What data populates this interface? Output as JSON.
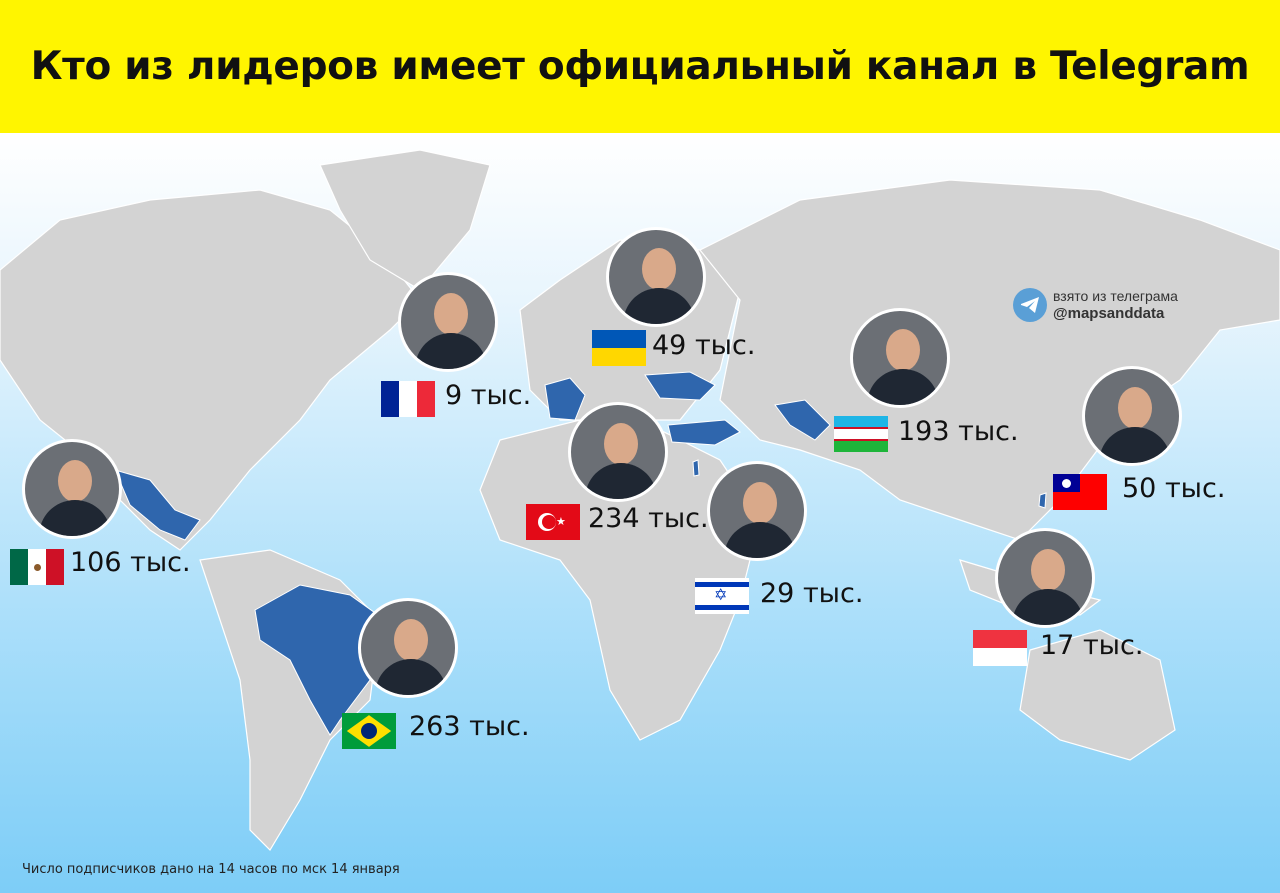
{
  "title": "Кто из лидеров имеет официальный канал в Telegram",
  "colors": {
    "header": "#fff500",
    "land": "#d3d3d3",
    "highlight": "#2f66ad",
    "ocean": "#7dcdf7"
  },
  "watermark": {
    "icon": "telegram-icon",
    "line1": "взято из телеграма",
    "handle": "@mapsanddata"
  },
  "leaders": [
    {
      "id": "france",
      "country": "France",
      "flag": "france-flag",
      "subscribers": "9 тыс."
    },
    {
      "id": "ukraine",
      "country": "Ukraine",
      "flag": "ukraine-flag",
      "subscribers": "49 тыс."
    },
    {
      "id": "uzbekistan",
      "country": "Uzbekistan",
      "flag": "uzbekistan-flag",
      "subscribers": "193 тыс."
    },
    {
      "id": "taiwan",
      "country": "Taiwan",
      "flag": "taiwan-flag",
      "subscribers": "50 тыс."
    },
    {
      "id": "mexico",
      "country": "Mexico",
      "flag": "mexico-flag",
      "subscribers": "106 тыс."
    },
    {
      "id": "turkey",
      "country": "Turkey",
      "flag": "turkey-flag",
      "subscribers": "234 тыс."
    },
    {
      "id": "israel",
      "country": "Israel",
      "flag": "israel-flag",
      "subscribers": "29 тыс."
    },
    {
      "id": "singapore",
      "country": "Singapore",
      "flag": "singapore-flag",
      "subscribers": "17 тыс."
    },
    {
      "id": "brazil",
      "country": "Brazil",
      "flag": "brazil-flag",
      "subscribers": "263 тыс."
    }
  ],
  "footnote": "Число подписчиков дано на 14 часов по мск 14 января"
}
